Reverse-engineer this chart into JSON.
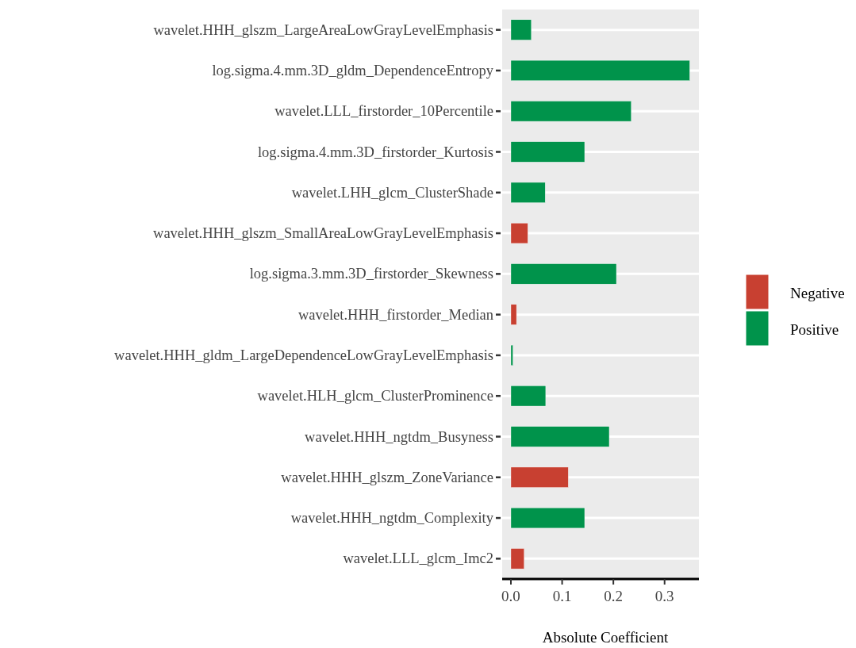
{
  "chart_data": {
    "type": "bar",
    "orientation": "horizontal",
    "xlabel": "Absolute Coefficient",
    "categories": [
      "wavelet.HHH_glszm_LargeAreaLowGrayLevelEmphasis",
      "log.sigma.4.mm.3D_gldm_DependenceEntropy",
      "wavelet.LLL_firstorder_10Percentile",
      "log.sigma.4.mm.3D_firstorder_Kurtosis",
      "wavelet.LHH_glcm_ClusterShade",
      "wavelet.HHH_glszm_SmallAreaLowGrayLevelEmphasis",
      "log.sigma.3.mm.3D_firstorder_Skewness",
      "wavelet.HHH_firstorder_Median",
      "wavelet.HHH_gldm_LargeDependenceLowGrayLevelEmphasis",
      "wavelet.HLH_glcm_ClusterProminence",
      "wavelet.HHH_ngtdm_Busyness",
      "wavelet.HHH_glszm_ZoneVariance",
      "wavelet.HHH_ngtdm_Complexity",
      "wavelet.LLL_glcm_Imc2"
    ],
    "series": [
      {
        "name": "Negative",
        "color": "#c84031",
        "values": [
          null,
          null,
          null,
          null,
          null,
          0.033,
          null,
          0.011,
          null,
          null,
          null,
          0.112,
          null,
          0.026
        ]
      },
      {
        "name": "Positive",
        "color": "#00934b",
        "values": [
          0.04,
          0.349,
          0.235,
          0.144,
          0.067,
          null,
          0.206,
          null,
          0.004,
          0.068,
          0.192,
          null,
          0.144,
          null
        ]
      }
    ],
    "xlim": [
      -0.017,
      0.367
    ],
    "xticks": [
      {
        "value": 0,
        "label": "0.0"
      },
      0.1,
      0.2,
      0.3
    ],
    "grid": "y",
    "legend": "right"
  }
}
